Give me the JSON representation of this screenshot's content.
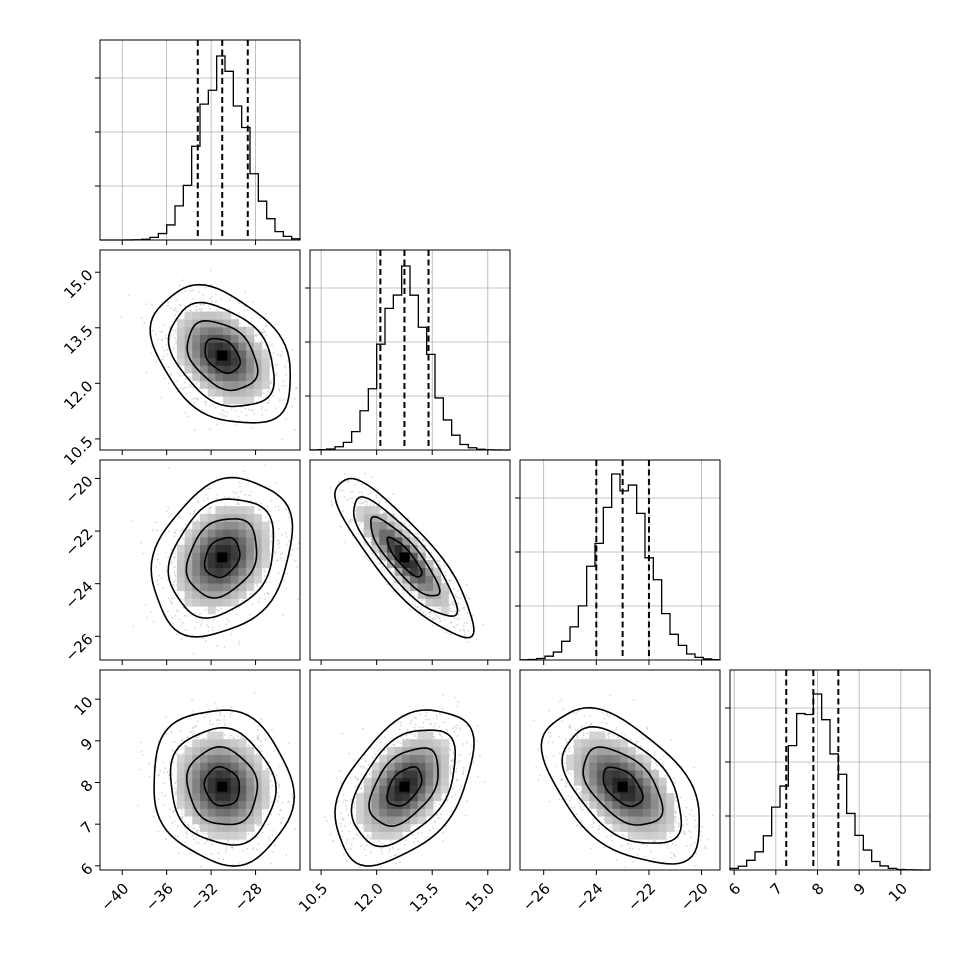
{
  "chart_data": {
    "type": "corner",
    "parameters": [
      {
        "mean": -31.0,
        "std": 2.1,
        "range": [
          -42.0,
          -24.0
        ],
        "ticks": [
          -40,
          -36,
          -32,
          -28
        ],
        "tick_labels": [
          "−40",
          "−36",
          "−32",
          "−28"
        ],
        "quantiles": [
          -33.2,
          -31.0,
          -28.7
        ],
        "hist_peak": 0.92
      },
      {
        "mean": 12.75,
        "std": 0.62,
        "range": [
          10.2,
          15.6
        ],
        "ticks": [
          10.5,
          12.0,
          13.5,
          15.0
        ],
        "tick_labels": [
          "10.5",
          "12.0",
          "13.5",
          "15.0"
        ],
        "quantiles": [
          12.1,
          12.75,
          13.4
        ],
        "hist_peak": 0.92
      },
      {
        "mean": -23.0,
        "std": 1.0,
        "range": [
          -26.9,
          -19.3
        ],
        "ticks": [
          -26,
          -24,
          -22,
          -20
        ],
        "tick_labels": [
          "−26",
          "−24",
          "−22",
          "−20"
        ],
        "quantiles": [
          -24.0,
          -23.0,
          -22.0
        ],
        "hist_peak": 0.93
      },
      {
        "mean": 7.9,
        "std": 0.62,
        "range": [
          5.9,
          10.7
        ],
        "ticks": [
          6,
          7,
          8,
          9,
          10
        ],
        "tick_labels": [
          "6",
          "7",
          "8",
          "9",
          "10"
        ],
        "quantiles": [
          7.25,
          7.9,
          8.5
        ],
        "hist_peak": 0.88
      }
    ],
    "correlations": {
      "1-0": -0.35,
      "2-0": 0.25,
      "2-1": -0.85,
      "3-0": -0.1,
      "3-1": 0.45,
      "3-2": -0.5
    },
    "contour_levels_sigma": [
      0.5,
      1.0,
      1.5,
      2.0
    ],
    "grid": true,
    "quantile_lines": "dashed"
  }
}
